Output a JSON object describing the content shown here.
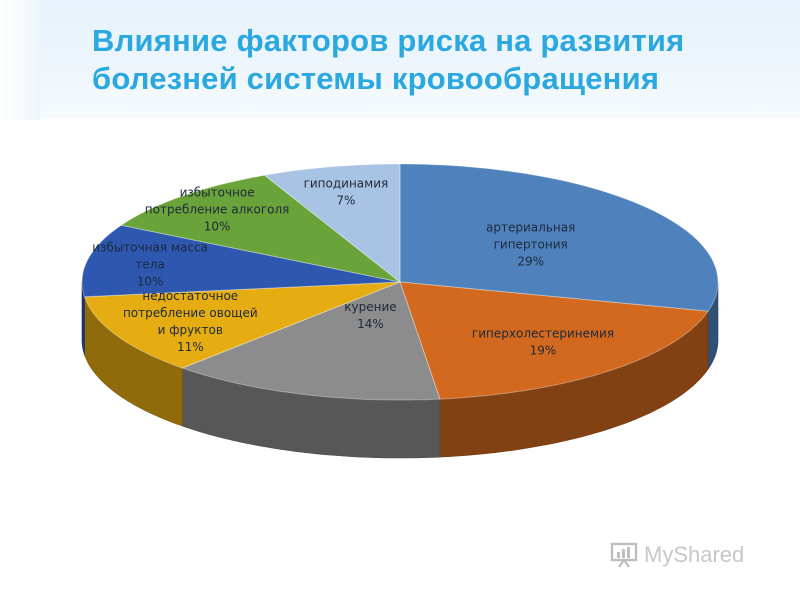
{
  "slide": {
    "title_line1": "Влияние факторов риска на развития",
    "title_line2": "болезней системы кровообращения",
    "title_color": "#2aa8df"
  },
  "chart_data": {
    "type": "pie",
    "style": "3d",
    "title": "",
    "legend": "none",
    "categories": [
      "артериальная гипертония",
      "гиперхолестеринемия",
      "курение",
      "недостаточное потребление овощей и фруктов",
      "избыточная масса тела",
      "избыточное потребление алкоголя",
      "гиподинамия"
    ],
    "values": [
      29,
      19,
      14,
      11,
      10,
      10,
      7
    ],
    "label_lines": [
      [
        "артериальная",
        "гипертония",
        "29%"
      ],
      [
        "гиперхолестеринемия",
        "19%"
      ],
      [
        "курение",
        "14%"
      ],
      [
        "недостаточное",
        "потребление овощей",
        "и фруктов",
        "11%"
      ],
      [
        "избыточная масса",
        "тела",
        "10%"
      ],
      [
        "избыточное",
        "потребление алкоголя",
        "10%"
      ],
      [
        "гиподинамия",
        "7%"
      ]
    ],
    "colors": [
      "#4f81bd",
      "#d2691e",
      "#8c8c8c",
      "#e6ad12",
      "#2e58b0",
      "#6aa33a",
      "#a8c3e4"
    ]
  },
  "watermark": {
    "text": "MyShared",
    "icon": "presentation-board-icon"
  }
}
